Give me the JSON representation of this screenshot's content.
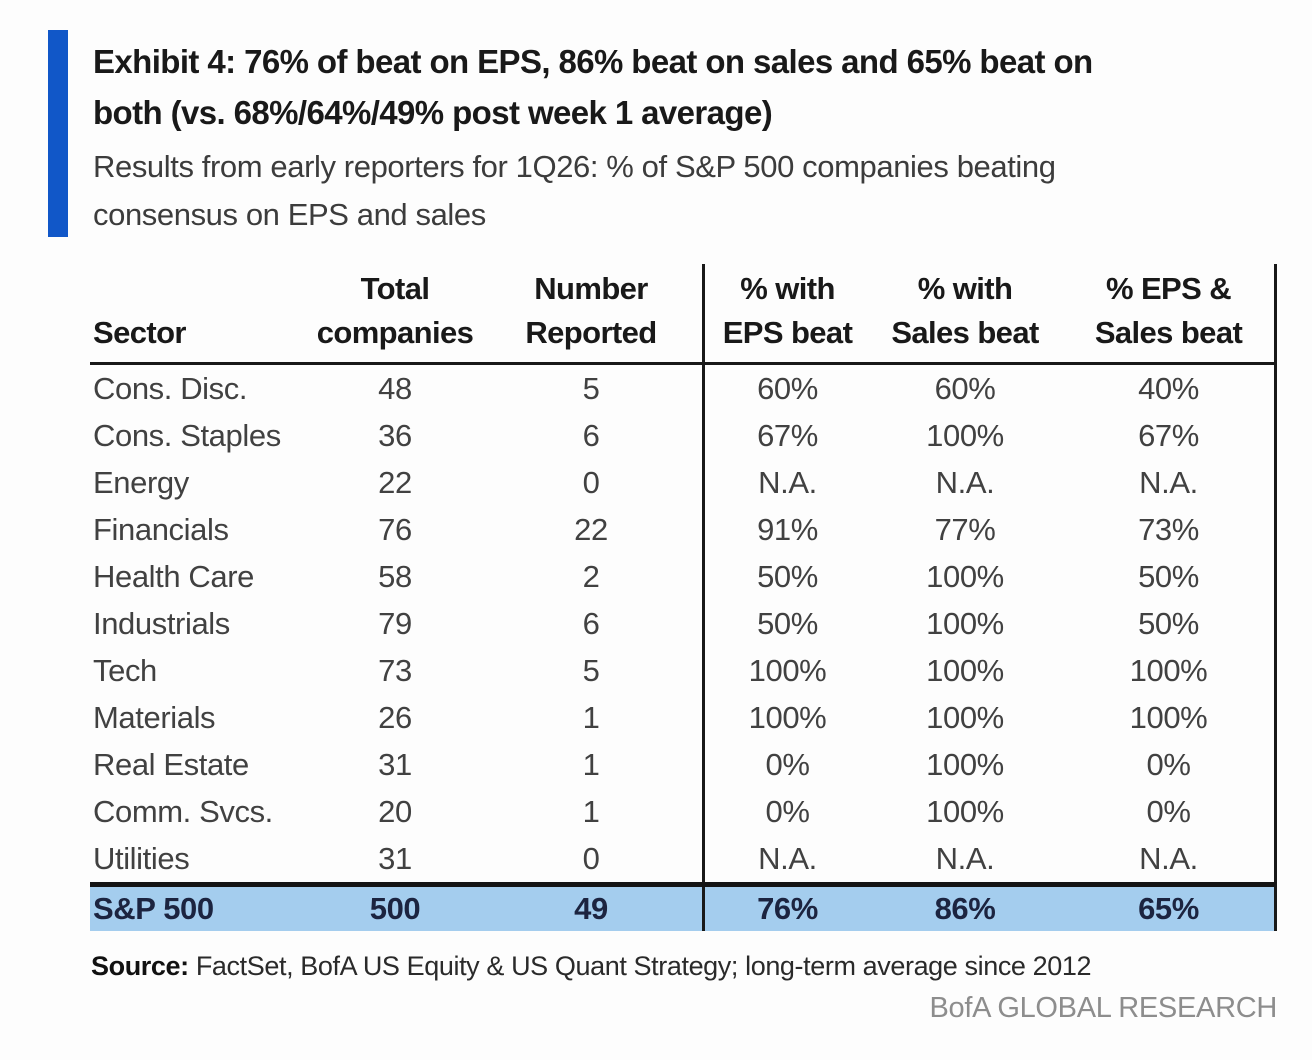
{
  "exhibit": {
    "title_line1": "Exhibit 4: 76% of beat on EPS, 86% beat on sales and 65% beat on",
    "title_line2": "both (vs. 68%/64%/49% post week 1 average)",
    "subtitle_line1": "Results from early reporters for 1Q26: % of S&P 500 companies beating",
    "subtitle_line2": "consensus on EPS and sales"
  },
  "chart_data": {
    "type": "table",
    "title": "Exhibit 4: 76% of beat on EPS, 86% beat on sales and 65% beat on both (vs. 68%/64%/49% post week 1 average)",
    "subtitle": "Results from early reporters for 1Q26: % of S&P 500 companies beating consensus on EPS and sales",
    "columns": [
      {
        "line1": "",
        "line2": "Sector"
      },
      {
        "line1": "Total",
        "line2": "companies"
      },
      {
        "line1": "Number",
        "line2": "Reported"
      },
      {
        "line1": "% with",
        "line2": "EPS beat"
      },
      {
        "line1": "% with",
        "line2": "Sales beat"
      },
      {
        "line1": "% EPS &",
        "line2": "Sales beat"
      }
    ],
    "rows": [
      [
        "Cons. Disc.",
        "48",
        "5",
        "60%",
        "60%",
        "40%"
      ],
      [
        "Cons. Staples",
        "36",
        "6",
        "67%",
        "100%",
        "67%"
      ],
      [
        "Energy",
        "22",
        "0",
        "N.A.",
        "N.A.",
        "N.A."
      ],
      [
        "Financials",
        "76",
        "22",
        "91%",
        "77%",
        "73%"
      ],
      [
        "Health Care",
        "58",
        "2",
        "50%",
        "100%",
        "50%"
      ],
      [
        "Industrials",
        "79",
        "6",
        "50%",
        "100%",
        "50%"
      ],
      [
        "Tech",
        "73",
        "5",
        "100%",
        "100%",
        "100%"
      ],
      [
        "Materials",
        "26",
        "1",
        "100%",
        "100%",
        "100%"
      ],
      [
        "Real Estate",
        "31",
        "1",
        "0%",
        "100%",
        "0%"
      ],
      [
        "Comm. Svcs.",
        "20",
        "1",
        "0%",
        "100%",
        "0%"
      ],
      [
        "Utilities",
        "31",
        "0",
        "N.A.",
        "N.A.",
        "N.A."
      ]
    ],
    "total_row": [
      "S&P 500",
      "500",
      "49",
      "76%",
      "86%",
      "65%"
    ]
  },
  "footer": {
    "source_label": "Source:",
    "source_text": " FactSet, BofA US Equity & US Quant Strategy; long-term average since 2012",
    "brand": "BofA GLOBAL RESEARCH"
  },
  "colors": {
    "accent_blue": "#1157c8",
    "total_row_highlight": "#a4cdee",
    "rule_black": "#191919",
    "body_text": "#414141",
    "brand_gray": "#8d8d8d"
  }
}
